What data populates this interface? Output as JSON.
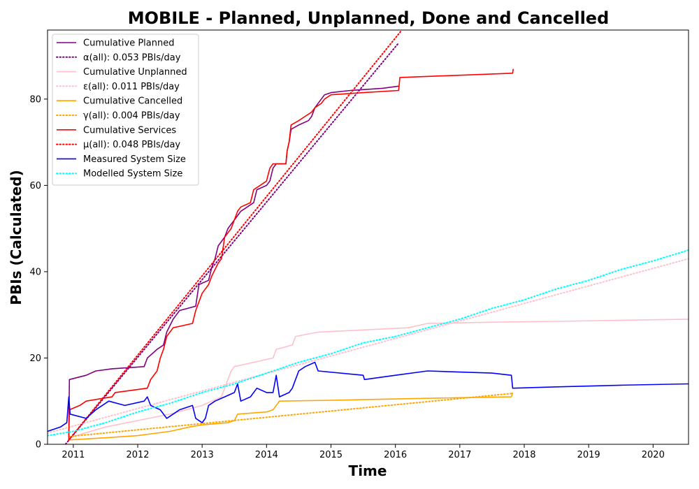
{
  "chart_data": {
    "type": "line",
    "title": "MOBILE - Planned, Unplanned, Done  and Cancelled",
    "xlabel": "Time",
    "ylabel": "PBIs (Calculated)",
    "xlim": [
      2010.6,
      2020.55
    ],
    "ylim": [
      0,
      96
    ],
    "xticks": [
      {
        "value": 2011,
        "label": "2011"
      },
      {
        "value": 2012,
        "label": "2012"
      },
      {
        "value": 2013,
        "label": "2013"
      },
      {
        "value": 2014,
        "label": "2014"
      },
      {
        "value": 2015,
        "label": "2015"
      },
      {
        "value": 2016,
        "label": "2016"
      },
      {
        "value": 2017,
        "label": "2017"
      },
      {
        "value": 2018,
        "label": "2018"
      },
      {
        "value": 2019,
        "label": "2019"
      },
      {
        "value": 2020,
        "label": "2020"
      }
    ],
    "yticks": [
      {
        "value": 0,
        "label": "0"
      },
      {
        "value": 20,
        "label": "20"
      },
      {
        "value": 40,
        "label": "40"
      },
      {
        "value": 60,
        "label": "60"
      },
      {
        "value": 80,
        "label": "80"
      }
    ],
    "grid": false,
    "legend_position": "top-left",
    "series": [
      {
        "name": "Cumulative Planned",
        "color": "#800080",
        "style": "solid",
        "points": [
          [
            2010.93,
            2
          ],
          [
            2010.94,
            15
          ],
          [
            2011.2,
            16
          ],
          [
            2011.35,
            17
          ],
          [
            2011.6,
            17.5
          ],
          [
            2012.1,
            18
          ],
          [
            2012.15,
            20
          ],
          [
            2012.3,
            22
          ],
          [
            2012.4,
            23
          ],
          [
            2012.45,
            26
          ],
          [
            2012.55,
            29
          ],
          [
            2012.6,
            30
          ],
          [
            2012.65,
            31
          ],
          [
            2012.9,
            32
          ],
          [
            2012.95,
            37
          ],
          [
            2013.1,
            38
          ],
          [
            2013.15,
            41
          ],
          [
            2013.2,
            43
          ],
          [
            2013.25,
            46
          ],
          [
            2013.35,
            48
          ],
          [
            2013.4,
            50
          ],
          [
            2013.5,
            52
          ],
          [
            2013.55,
            53
          ],
          [
            2013.6,
            54
          ],
          [
            2013.7,
            55
          ],
          [
            2013.8,
            56
          ],
          [
            2013.85,
            59
          ],
          [
            2014.0,
            60
          ],
          [
            2014.05,
            61
          ],
          [
            2014.1,
            64
          ],
          [
            2014.15,
            65
          ],
          [
            2014.3,
            65
          ],
          [
            2014.32,
            68
          ],
          [
            2014.35,
            70
          ],
          [
            2014.38,
            73
          ],
          [
            2014.5,
            74
          ],
          [
            2014.65,
            75
          ],
          [
            2014.7,
            76
          ],
          [
            2014.75,
            78
          ],
          [
            2014.85,
            80
          ],
          [
            2014.9,
            81
          ],
          [
            2015.0,
            81.5
          ],
          [
            2015.3,
            82
          ],
          [
            2015.8,
            82.5
          ],
          [
            2016.05,
            83
          ]
        ]
      },
      {
        "name": "α(all): 0.053 PBIs/day",
        "color": "#800080",
        "style": "dotted",
        "points": [
          [
            2010.6,
            -5
          ],
          [
            2016.05,
            93
          ]
        ]
      },
      {
        "name": "Cumulative Unplanned",
        "color": "#ffc0cb",
        "style": "solid",
        "points": [
          [
            2010.93,
            1.5
          ],
          [
            2011.5,
            4
          ],
          [
            2012.0,
            5.5
          ],
          [
            2012.5,
            7
          ],
          [
            2013.0,
            9
          ],
          [
            2013.3,
            11
          ],
          [
            2013.35,
            13
          ],
          [
            2013.4,
            15
          ],
          [
            2013.45,
            17
          ],
          [
            2013.5,
            18
          ],
          [
            2013.8,
            19
          ],
          [
            2014.1,
            20
          ],
          [
            2014.15,
            22
          ],
          [
            2014.4,
            23
          ],
          [
            2014.45,
            25
          ],
          [
            2014.8,
            26
          ],
          [
            2015.5,
            26.5
          ],
          [
            2016.2,
            27
          ],
          [
            2016.5,
            28
          ],
          [
            2017.5,
            28.3
          ],
          [
            2018.5,
            28.5
          ],
          [
            2020.55,
            29
          ]
        ]
      },
      {
        "name": "ε(all): 0.011 PBIs/day",
        "color": "#ffc0cb",
        "style": "dotted",
        "points": [
          [
            2010.6,
            2.6
          ],
          [
            2020.55,
            43
          ]
        ]
      },
      {
        "name": "Cumulative Cancelled",
        "color": "#ffa500",
        "style": "solid",
        "points": [
          [
            2010.93,
            1
          ],
          [
            2011.5,
            1.5
          ],
          [
            2012.0,
            2
          ],
          [
            2012.5,
            3
          ],
          [
            2012.8,
            4
          ],
          [
            2013.0,
            4.5
          ],
          [
            2013.4,
            5
          ],
          [
            2013.5,
            5.5
          ],
          [
            2013.55,
            7
          ],
          [
            2014.0,
            7.5
          ],
          [
            2014.1,
            8
          ],
          [
            2014.15,
            9
          ],
          [
            2014.2,
            10
          ],
          [
            2015.0,
            10.2
          ],
          [
            2016.0,
            10.5
          ],
          [
            2017.0,
            10.8
          ],
          [
            2017.8,
            11
          ],
          [
            2017.82,
            12
          ]
        ]
      },
      {
        "name": "γ(all): 0.004 PBIs/day",
        "color": "#ffa500",
        "style": "dotted",
        "points": [
          [
            2010.93,
            1.8
          ],
          [
            2017.82,
            11.8
          ]
        ]
      },
      {
        "name": "Cumulative Services",
        "color": "#ff0000",
        "style": "solid",
        "points": [
          [
            2010.93,
            1
          ],
          [
            2010.94,
            8
          ],
          [
            2011.1,
            9
          ],
          [
            2011.2,
            10
          ],
          [
            2011.6,
            11
          ],
          [
            2011.65,
            12
          ],
          [
            2012.15,
            13
          ],
          [
            2012.2,
            15
          ],
          [
            2012.3,
            17
          ],
          [
            2012.35,
            20
          ],
          [
            2012.4,
            22
          ],
          [
            2012.45,
            25
          ],
          [
            2012.55,
            27
          ],
          [
            2012.85,
            28
          ],
          [
            2012.9,
            31
          ],
          [
            2012.95,
            33
          ],
          [
            2013.0,
            35
          ],
          [
            2013.1,
            37
          ],
          [
            2013.15,
            39
          ],
          [
            2013.25,
            42
          ],
          [
            2013.3,
            43
          ],
          [
            2013.35,
            48
          ],
          [
            2013.45,
            50
          ],
          [
            2013.5,
            52
          ],
          [
            2013.55,
            54
          ],
          [
            2013.6,
            55
          ],
          [
            2013.75,
            56
          ],
          [
            2013.8,
            59
          ],
          [
            2013.9,
            60
          ],
          [
            2014.0,
            61
          ],
          [
            2014.05,
            64
          ],
          [
            2014.1,
            65
          ],
          [
            2014.3,
            65
          ],
          [
            2014.32,
            68
          ],
          [
            2014.35,
            70
          ],
          [
            2014.38,
            74
          ],
          [
            2014.5,
            75
          ],
          [
            2014.6,
            76
          ],
          [
            2014.7,
            77
          ],
          [
            2014.75,
            78
          ],
          [
            2014.85,
            79
          ],
          [
            2014.9,
            80
          ],
          [
            2015.0,
            81
          ],
          [
            2015.5,
            81.5
          ],
          [
            2016.05,
            82
          ],
          [
            2016.07,
            85
          ],
          [
            2017.82,
            86
          ],
          [
            2017.83,
            87
          ]
        ]
      },
      {
        "name": "μ(all): 0.048 PBIs/day",
        "color": "#ff0000",
        "style": "dotted",
        "points": [
          [
            2010.93,
            1
          ],
          [
            2016.1,
            96
          ]
        ]
      },
      {
        "name": "Measured System Size",
        "color": "#0000ff",
        "style": "solid",
        "points": [
          [
            2010.6,
            3
          ],
          [
            2010.8,
            4
          ],
          [
            2010.9,
            5
          ],
          [
            2010.93,
            11
          ],
          [
            2010.95,
            7
          ],
          [
            2011.2,
            6
          ],
          [
            2011.35,
            8
          ],
          [
            2011.55,
            10
          ],
          [
            2011.8,
            9
          ],
          [
            2012.1,
            10
          ],
          [
            2012.15,
            11
          ],
          [
            2012.2,
            9
          ],
          [
            2012.35,
            8
          ],
          [
            2012.45,
            6
          ],
          [
            2012.55,
            7
          ],
          [
            2012.65,
            8
          ],
          [
            2012.85,
            9
          ],
          [
            2012.9,
            6
          ],
          [
            2013.0,
            5
          ],
          [
            2013.05,
            6
          ],
          [
            2013.1,
            9
          ],
          [
            2013.2,
            10
          ],
          [
            2013.35,
            11
          ],
          [
            2013.5,
            12
          ],
          [
            2013.55,
            14
          ],
          [
            2013.6,
            10
          ],
          [
            2013.75,
            11
          ],
          [
            2013.85,
            13
          ],
          [
            2014.0,
            12
          ],
          [
            2014.1,
            12
          ],
          [
            2014.15,
            16
          ],
          [
            2014.2,
            11
          ],
          [
            2014.35,
            12
          ],
          [
            2014.4,
            13
          ],
          [
            2014.45,
            15
          ],
          [
            2014.5,
            17
          ],
          [
            2014.6,
            18
          ],
          [
            2014.75,
            19
          ],
          [
            2014.8,
            17
          ],
          [
            2015.5,
            16
          ],
          [
            2015.52,
            15
          ],
          [
            2016.0,
            16
          ],
          [
            2016.5,
            17
          ],
          [
            2017.5,
            16.5
          ],
          [
            2017.8,
            16
          ],
          [
            2017.82,
            13
          ],
          [
            2018.5,
            13.3
          ],
          [
            2019.5,
            13.7
          ],
          [
            2020.55,
            14
          ]
        ]
      },
      {
        "name": "Modelled System Size",
        "color": "#00ffff",
        "style": "dotted",
        "points": [
          [
            2010.6,
            2
          ],
          [
            2011.0,
            3
          ],
          [
            2011.5,
            5
          ],
          [
            2012.0,
            7.5
          ],
          [
            2012.5,
            9.5
          ],
          [
            2013.0,
            12
          ],
          [
            2013.5,
            14
          ],
          [
            2014.0,
            16.5
          ],
          [
            2014.5,
            19
          ],
          [
            2015.0,
            21
          ],
          [
            2015.5,
            23.5
          ],
          [
            2016.0,
            25
          ],
          [
            2016.5,
            27
          ],
          [
            2017.0,
            29
          ],
          [
            2017.5,
            31.5
          ],
          [
            2018.0,
            33.5
          ],
          [
            2018.5,
            36
          ],
          [
            2019.0,
            38
          ],
          [
            2019.5,
            40.5
          ],
          [
            2020.0,
            42.5
          ],
          [
            2020.55,
            45
          ]
        ]
      }
    ]
  }
}
